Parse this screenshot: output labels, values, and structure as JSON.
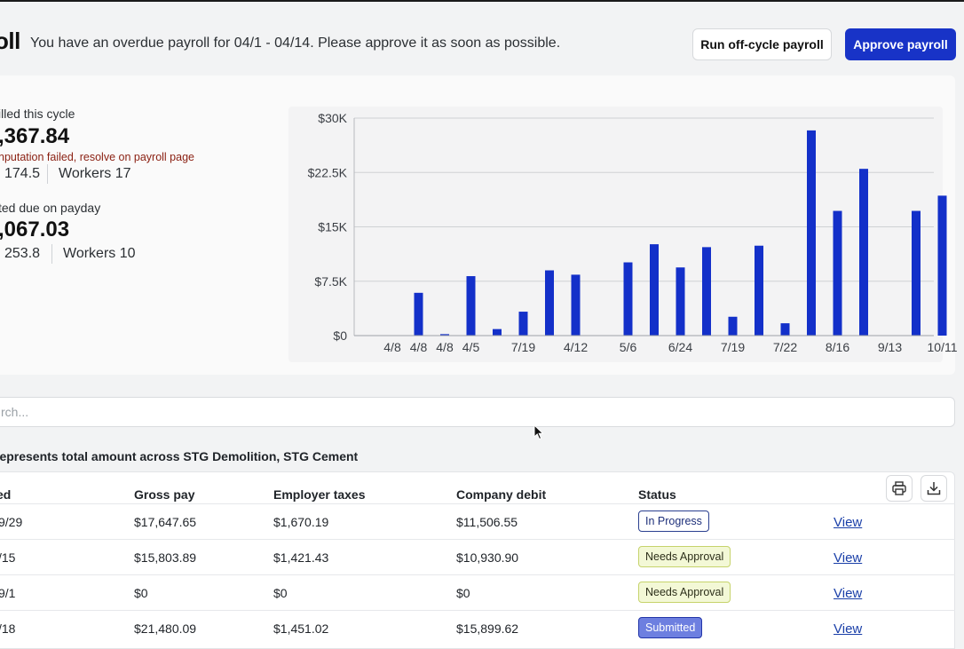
{
  "header": {
    "title": "oll",
    "alert": "You have an overdue payroll for 04/1 - 04/14. Please approve it as soon as possible.",
    "offcycle_label": "Run off-cycle payroll",
    "approve_label": "Approve payroll"
  },
  "summary": {
    "billed": {
      "label": "illed this cycle",
      "value": ",367.84",
      "error": "nputation failed, resolve on payroll page",
      "hours": "174.5",
      "workers": "Workers 17"
    },
    "due": {
      "label": "ted due on payday",
      "value": ",067.03",
      "hours": "253.8",
      "workers": "Workers 10"
    }
  },
  "chart_data": {
    "type": "bar",
    "color": "#1330c9",
    "ylim": [
      0,
      30000
    ],
    "y_ticks": [
      "$0",
      "$7.5K",
      "$15K",
      "$22.5K",
      "$30K"
    ],
    "y_tick_values": [
      0,
      7500,
      15000,
      22500,
      30000
    ],
    "x_tick_labels": [
      "4/8",
      "4/8",
      "4/8",
      "4/5",
      "7/19",
      "4/12",
      "5/6",
      "6/24",
      "7/19",
      "7/22",
      "8/16",
      "9/13",
      "10/11"
    ],
    "x_tick_indices": [
      0,
      1,
      2,
      3,
      5,
      7,
      9,
      11,
      13,
      15,
      17,
      19,
      21
    ],
    "values": [
      0,
      5900,
      200,
      8200,
      900,
      3300,
      9000,
      8400,
      0,
      10100,
      12600,
      9400,
      12200,
      2600,
      12400,
      1700,
      28300,
      17200,
      23000,
      0,
      17200,
      19300
    ]
  },
  "search": {
    "placeholder": "rch..."
  },
  "note": "represents total amount across STG Demolition, STG Cement",
  "table": {
    "headers": {
      "period": "ed",
      "gross": "Gross pay",
      "taxes": "Employer taxes",
      "debit": "Company debit",
      "status": "Status"
    },
    "view_label": "View",
    "rows": [
      {
        "period": "9/29",
        "gross": "$17,647.65",
        "taxes": "$1,670.19",
        "debit": "$11,506.55",
        "status": "In Progress"
      },
      {
        "period": "/15",
        "gross": "$15,803.89",
        "taxes": "$1,421.43",
        "debit": "$10,930.90",
        "status": "Needs Approval"
      },
      {
        "period": "9/1",
        "gross": "$0",
        "taxes": "$0",
        "debit": "$0",
        "status": "Needs Approval"
      },
      {
        "period": "/18",
        "gross": "$21,480.09",
        "taxes": "$1,451.02",
        "debit": "$15,899.62",
        "status": "Submitted"
      }
    ]
  },
  "icons": [
    "printer-icon",
    "download-icon",
    "mouse-cursor-icon"
  ]
}
